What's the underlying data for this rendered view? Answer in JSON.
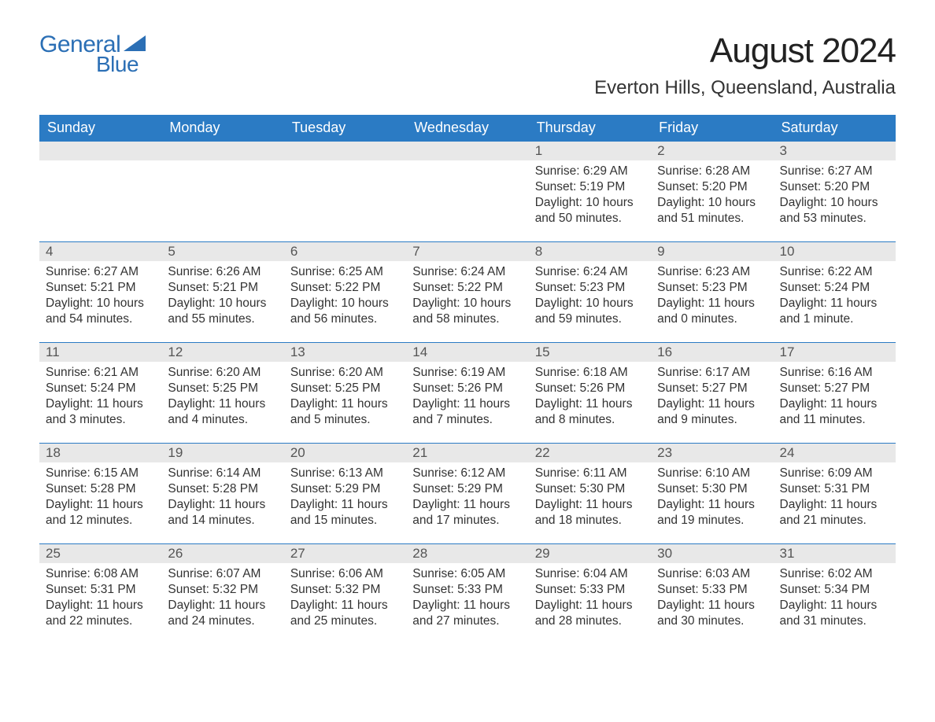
{
  "brand": {
    "general": "General",
    "blue": "Blue"
  },
  "title": "August 2024",
  "location": "Everton Hills, Queensland, Australia",
  "colors": {
    "header_bg": "#2b7bc4",
    "header_text": "#ffffff",
    "daynum_bg": "#e8e8e8",
    "brand_color": "#2b6fb5",
    "text_color": "#333333",
    "border_color": "#2b7bc4"
  },
  "fonts": {
    "title_size": 44,
    "location_size": 24,
    "header_size": 18,
    "body_size": 15.5
  },
  "weekdays": [
    "Sunday",
    "Monday",
    "Tuesday",
    "Wednesday",
    "Thursday",
    "Friday",
    "Saturday"
  ],
  "layout": {
    "rows": 5,
    "cols": 7,
    "first_day_col": 4
  },
  "days": [
    null,
    null,
    null,
    null,
    {
      "num": "1",
      "sunrise": "Sunrise: 6:29 AM",
      "sunset": "Sunset: 5:19 PM",
      "daylight": "Daylight: 10 hours and 50 minutes."
    },
    {
      "num": "2",
      "sunrise": "Sunrise: 6:28 AM",
      "sunset": "Sunset: 5:20 PM",
      "daylight": "Daylight: 10 hours and 51 minutes."
    },
    {
      "num": "3",
      "sunrise": "Sunrise: 6:27 AM",
      "sunset": "Sunset: 5:20 PM",
      "daylight": "Daylight: 10 hours and 53 minutes."
    },
    {
      "num": "4",
      "sunrise": "Sunrise: 6:27 AM",
      "sunset": "Sunset: 5:21 PM",
      "daylight": "Daylight: 10 hours and 54 minutes."
    },
    {
      "num": "5",
      "sunrise": "Sunrise: 6:26 AM",
      "sunset": "Sunset: 5:21 PM",
      "daylight": "Daylight: 10 hours and 55 minutes."
    },
    {
      "num": "6",
      "sunrise": "Sunrise: 6:25 AM",
      "sunset": "Sunset: 5:22 PM",
      "daylight": "Daylight: 10 hours and 56 minutes."
    },
    {
      "num": "7",
      "sunrise": "Sunrise: 6:24 AM",
      "sunset": "Sunset: 5:22 PM",
      "daylight": "Daylight: 10 hours and 58 minutes."
    },
    {
      "num": "8",
      "sunrise": "Sunrise: 6:24 AM",
      "sunset": "Sunset: 5:23 PM",
      "daylight": "Daylight: 10 hours and 59 minutes."
    },
    {
      "num": "9",
      "sunrise": "Sunrise: 6:23 AM",
      "sunset": "Sunset: 5:23 PM",
      "daylight": "Daylight: 11 hours and 0 minutes."
    },
    {
      "num": "10",
      "sunrise": "Sunrise: 6:22 AM",
      "sunset": "Sunset: 5:24 PM",
      "daylight": "Daylight: 11 hours and 1 minute."
    },
    {
      "num": "11",
      "sunrise": "Sunrise: 6:21 AM",
      "sunset": "Sunset: 5:24 PM",
      "daylight": "Daylight: 11 hours and 3 minutes."
    },
    {
      "num": "12",
      "sunrise": "Sunrise: 6:20 AM",
      "sunset": "Sunset: 5:25 PM",
      "daylight": "Daylight: 11 hours and 4 minutes."
    },
    {
      "num": "13",
      "sunrise": "Sunrise: 6:20 AM",
      "sunset": "Sunset: 5:25 PM",
      "daylight": "Daylight: 11 hours and 5 minutes."
    },
    {
      "num": "14",
      "sunrise": "Sunrise: 6:19 AM",
      "sunset": "Sunset: 5:26 PM",
      "daylight": "Daylight: 11 hours and 7 minutes."
    },
    {
      "num": "15",
      "sunrise": "Sunrise: 6:18 AM",
      "sunset": "Sunset: 5:26 PM",
      "daylight": "Daylight: 11 hours and 8 minutes."
    },
    {
      "num": "16",
      "sunrise": "Sunrise: 6:17 AM",
      "sunset": "Sunset: 5:27 PM",
      "daylight": "Daylight: 11 hours and 9 minutes."
    },
    {
      "num": "17",
      "sunrise": "Sunrise: 6:16 AM",
      "sunset": "Sunset: 5:27 PM",
      "daylight": "Daylight: 11 hours and 11 minutes."
    },
    {
      "num": "18",
      "sunrise": "Sunrise: 6:15 AM",
      "sunset": "Sunset: 5:28 PM",
      "daylight": "Daylight: 11 hours and 12 minutes."
    },
    {
      "num": "19",
      "sunrise": "Sunrise: 6:14 AM",
      "sunset": "Sunset: 5:28 PM",
      "daylight": "Daylight: 11 hours and 14 minutes."
    },
    {
      "num": "20",
      "sunrise": "Sunrise: 6:13 AM",
      "sunset": "Sunset: 5:29 PM",
      "daylight": "Daylight: 11 hours and 15 minutes."
    },
    {
      "num": "21",
      "sunrise": "Sunrise: 6:12 AM",
      "sunset": "Sunset: 5:29 PM",
      "daylight": "Daylight: 11 hours and 17 minutes."
    },
    {
      "num": "22",
      "sunrise": "Sunrise: 6:11 AM",
      "sunset": "Sunset: 5:30 PM",
      "daylight": "Daylight: 11 hours and 18 minutes."
    },
    {
      "num": "23",
      "sunrise": "Sunrise: 6:10 AM",
      "sunset": "Sunset: 5:30 PM",
      "daylight": "Daylight: 11 hours and 19 minutes."
    },
    {
      "num": "24",
      "sunrise": "Sunrise: 6:09 AM",
      "sunset": "Sunset: 5:31 PM",
      "daylight": "Daylight: 11 hours and 21 minutes."
    },
    {
      "num": "25",
      "sunrise": "Sunrise: 6:08 AM",
      "sunset": "Sunset: 5:31 PM",
      "daylight": "Daylight: 11 hours and 22 minutes."
    },
    {
      "num": "26",
      "sunrise": "Sunrise: 6:07 AM",
      "sunset": "Sunset: 5:32 PM",
      "daylight": "Daylight: 11 hours and 24 minutes."
    },
    {
      "num": "27",
      "sunrise": "Sunrise: 6:06 AM",
      "sunset": "Sunset: 5:32 PM",
      "daylight": "Daylight: 11 hours and 25 minutes."
    },
    {
      "num": "28",
      "sunrise": "Sunrise: 6:05 AM",
      "sunset": "Sunset: 5:33 PM",
      "daylight": "Daylight: 11 hours and 27 minutes."
    },
    {
      "num": "29",
      "sunrise": "Sunrise: 6:04 AM",
      "sunset": "Sunset: 5:33 PM",
      "daylight": "Daylight: 11 hours and 28 minutes."
    },
    {
      "num": "30",
      "sunrise": "Sunrise: 6:03 AM",
      "sunset": "Sunset: 5:33 PM",
      "daylight": "Daylight: 11 hours and 30 minutes."
    },
    {
      "num": "31",
      "sunrise": "Sunrise: 6:02 AM",
      "sunset": "Sunset: 5:34 PM",
      "daylight": "Daylight: 11 hours and 31 minutes."
    }
  ]
}
